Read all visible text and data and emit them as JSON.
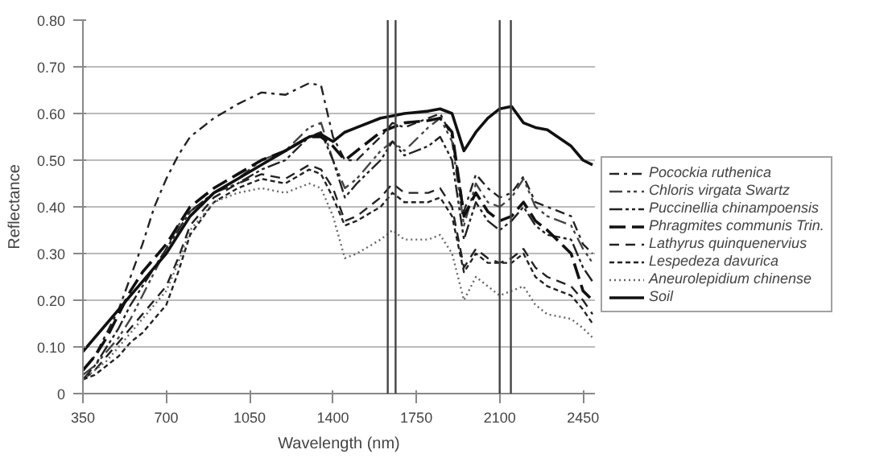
{
  "chart_data": {
    "type": "line",
    "xlabel": "Wavelength (nm)",
    "ylabel": "Reflectance",
    "x": [
      350,
      400,
      450,
      500,
      550,
      600,
      650,
      700,
      750,
      800,
      900,
      1000,
      1100,
      1200,
      1300,
      1350,
      1400,
      1450,
      1500,
      1600,
      1650,
      1700,
      1800,
      1850,
      1900,
      1950,
      2000,
      2050,
      2100,
      2150,
      2200,
      2250,
      2300,
      2400,
      2450,
      2490
    ],
    "series": [
      {
        "name": "Pocockia ruthenica",
        "color": "#222222",
        "line_style": "dashed",
        "values": [
          0.05,
          0.08,
          0.13,
          0.18,
          0.25,
          0.32,
          0.4,
          0.46,
          0.51,
          0.55,
          0.59,
          0.62,
          0.645,
          0.64,
          0.665,
          0.66,
          0.55,
          0.5,
          0.5,
          0.55,
          0.58,
          0.57,
          0.59,
          0.6,
          0.55,
          0.39,
          0.47,
          0.44,
          0.42,
          0.43,
          0.465,
          0.41,
          0.4,
          0.38,
          0.32,
          0.3
        ]
      },
      {
        "name": "Chloris virgata Swartz",
        "color": "#444444",
        "line_style": "dashed",
        "values": [
          0.04,
          0.06,
          0.09,
          0.12,
          0.16,
          0.21,
          0.26,
          0.31,
          0.36,
          0.39,
          0.43,
          0.46,
          0.5,
          0.52,
          0.57,
          0.58,
          0.5,
          0.44,
          0.46,
          0.52,
          0.54,
          0.52,
          0.57,
          0.59,
          0.54,
          0.36,
          0.45,
          0.41,
          0.4,
          0.42,
          0.46,
          0.4,
          0.38,
          0.36,
          0.31,
          0.28
        ]
      },
      {
        "name": "Puccinellia chinampoensis",
        "color": "#222222",
        "line_style": "dashed",
        "values": [
          0.03,
          0.06,
          0.1,
          0.14,
          0.19,
          0.23,
          0.27,
          0.31,
          0.35,
          0.39,
          0.43,
          0.45,
          0.48,
          0.5,
          0.55,
          0.56,
          0.5,
          0.42,
          0.45,
          0.5,
          0.54,
          0.51,
          0.53,
          0.55,
          0.5,
          0.33,
          0.41,
          0.37,
          0.35,
          0.37,
          0.4,
          0.36,
          0.34,
          0.33,
          0.27,
          0.24
        ]
      },
      {
        "name": "Phragmites communis Trin.",
        "color": "#111111",
        "line_style": "dashed",
        "values": [
          0.05,
          0.08,
          0.12,
          0.17,
          0.22,
          0.26,
          0.29,
          0.32,
          0.36,
          0.4,
          0.44,
          0.47,
          0.5,
          0.52,
          0.55,
          0.55,
          0.53,
          0.5,
          0.52,
          0.56,
          0.57,
          0.58,
          0.585,
          0.59,
          0.56,
          0.38,
          0.43,
          0.39,
          0.37,
          0.38,
          0.41,
          0.37,
          0.35,
          0.3,
          0.22,
          0.2
        ]
      },
      {
        "name": "Lathyrus quinquenervius",
        "color": "#222222",
        "line_style": "dashed",
        "values": [
          0.03,
          0.05,
          0.08,
          0.11,
          0.14,
          0.17,
          0.2,
          0.23,
          0.29,
          0.36,
          0.42,
          0.45,
          0.47,
          0.46,
          0.49,
          0.48,
          0.44,
          0.37,
          0.38,
          0.42,
          0.45,
          0.43,
          0.43,
          0.44,
          0.4,
          0.27,
          0.31,
          0.29,
          0.28,
          0.29,
          0.31,
          0.27,
          0.25,
          0.23,
          0.2,
          0.17
        ]
      },
      {
        "name": "Lespedeza davurica",
        "color": "#222222",
        "line_style": "dashed",
        "values": [
          0.03,
          0.04,
          0.06,
          0.08,
          0.11,
          0.13,
          0.16,
          0.19,
          0.26,
          0.34,
          0.41,
          0.44,
          0.46,
          0.45,
          0.48,
          0.47,
          0.42,
          0.36,
          0.37,
          0.4,
          0.43,
          0.41,
          0.41,
          0.42,
          0.38,
          0.26,
          0.3,
          0.28,
          0.28,
          0.28,
          0.3,
          0.25,
          0.23,
          0.21,
          0.18,
          0.15
        ]
      },
      {
        "name": "Aneurolepidium chinense",
        "color": "#666666",
        "line_style": "dotted",
        "values": [
          0.03,
          0.05,
          0.07,
          0.1,
          0.13,
          0.16,
          0.19,
          0.22,
          0.28,
          0.35,
          0.41,
          0.43,
          0.44,
          0.43,
          0.45,
          0.44,
          0.38,
          0.29,
          0.3,
          0.33,
          0.35,
          0.33,
          0.33,
          0.34,
          0.3,
          0.2,
          0.25,
          0.23,
          0.21,
          0.22,
          0.23,
          0.19,
          0.17,
          0.16,
          0.14,
          0.12
        ]
      },
      {
        "name": "Soil",
        "color": "#111111",
        "line_style": "solid",
        "values": [
          0.09,
          0.12,
          0.15,
          0.18,
          0.21,
          0.24,
          0.27,
          0.3,
          0.34,
          0.38,
          0.43,
          0.46,
          0.49,
          0.52,
          0.55,
          0.555,
          0.54,
          0.56,
          0.57,
          0.59,
          0.595,
          0.6,
          0.605,
          0.61,
          0.6,
          0.52,
          0.56,
          0.59,
          0.61,
          0.615,
          0.58,
          0.57,
          0.565,
          0.53,
          0.5,
          0.49
        ]
      }
    ],
    "xlim": [
      350,
      2500
    ],
    "xticks": [
      350,
      700,
      1050,
      1400,
      1750,
      2100,
      2450
    ],
    "ylim": [
      0,
      0.8
    ],
    "yticks": [
      {
        "value": 0,
        "label": "0"
      },
      {
        "value": 0.1,
        "label": "0.10"
      },
      {
        "value": 0.2,
        "label": "0.20"
      },
      {
        "value": 0.3,
        "label": "0.30"
      },
      {
        "value": 0.4,
        "label": "0.40"
      },
      {
        "value": 0.5,
        "label": "0.50"
      },
      {
        "value": 0.6,
        "label": "0.60"
      },
      {
        "value": 0.7,
        "label": "0.70"
      },
      {
        "value": 0.8,
        "label": "0.80"
      }
    ],
    "ref_lines": [
      {
        "axis": "x",
        "value": 1630,
        "color": "#444444"
      },
      {
        "axis": "x",
        "value": 1663,
        "color": "#444444"
      },
      {
        "axis": "x",
        "value": 2100,
        "color": "#444444"
      },
      {
        "axis": "x",
        "value": 2147,
        "color": "#444444"
      }
    ],
    "grid": "y",
    "legend": "right"
  }
}
